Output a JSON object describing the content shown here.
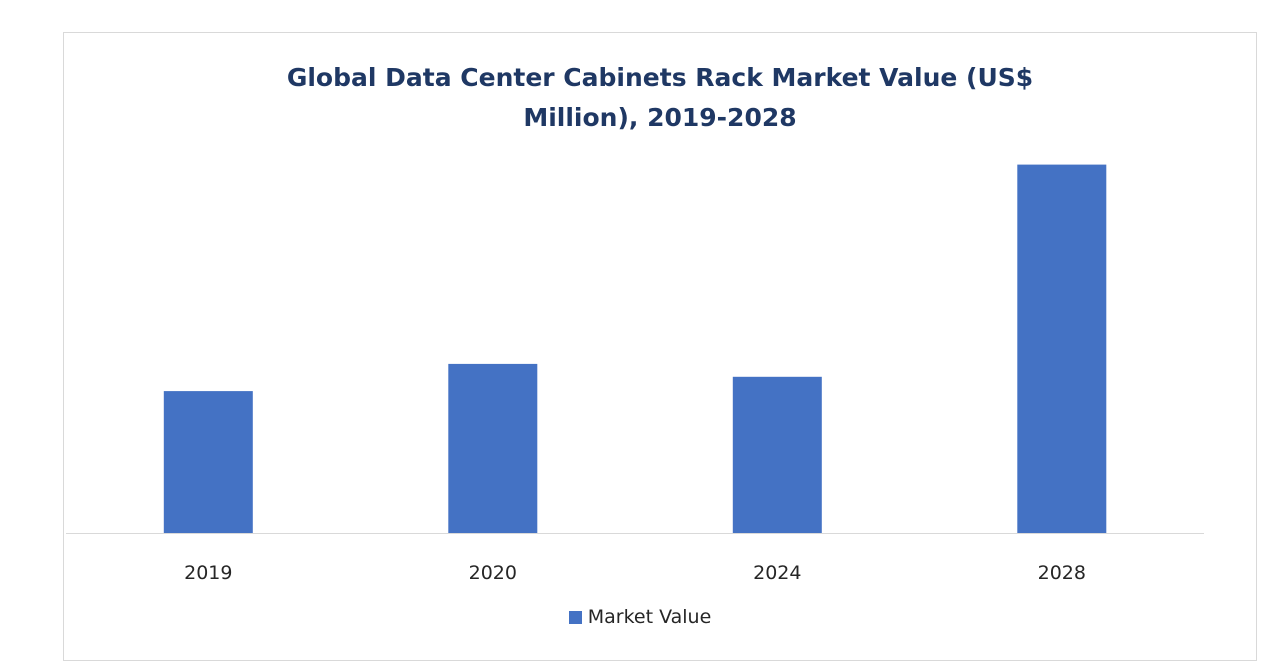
{
  "chart_data": {
    "type": "bar",
    "title_line1": "Global Data Center Cabinets Rack Market Value (US$",
    "title_line2": "Million), 2019-2028",
    "xlabel": "",
    "ylabel": "",
    "categories": [
      "2019",
      "2020",
      "2024",
      "2028"
    ],
    "series": [
      {
        "name": "Market Value",
        "values": [
          2762,
          3292,
          3040,
          7170
        ]
      }
    ],
    "ylim": [
      0,
      8000
    ],
    "grid": false,
    "y_axis_visible": false,
    "legend_position": "bottom",
    "colors": {
      "bar": "#4472c4",
      "title": "#1f3864",
      "text": "#262626",
      "axis": "#d9d9d9"
    }
  }
}
